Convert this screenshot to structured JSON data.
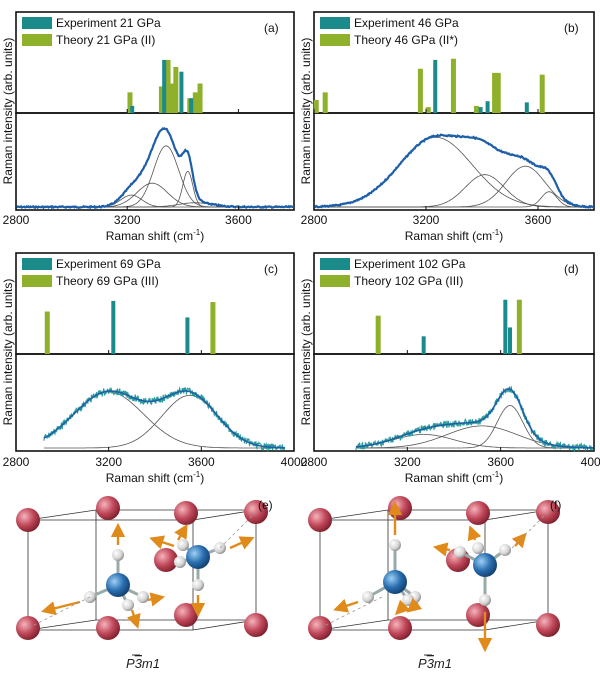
{
  "figure": {
    "axis_label_y": "Raman intensity (arb. units)",
    "axis_label_x_base": "Raman shift (cm",
    "axis_label_x_sup": "-1",
    "axis_label_x_end": ")"
  },
  "colors": {
    "experiment": "#1b8a8a",
    "theory": "#8fb02a",
    "fit_curve": "#1f5fa8",
    "component": "#555555",
    "noisy_data": "#2a9c98",
    "atom_corner": "#c0485a",
    "atom_n": "#2a6fb0",
    "atom_h": "#dcdcdc",
    "arrow": "#e08a1a"
  },
  "chart_data": [
    {
      "panel": "(a)",
      "type": "bar",
      "legend": [
        "Experiment 21 GPa",
        "Theory 21 GPa (II)"
      ],
      "xlabel": "Raman shift (cm-1)",
      "ylabel": "Raman intensity (arb. units)",
      "xlim": [
        2800,
        3800
      ],
      "xticks": [
        2800,
        3200,
        3600
      ],
      "experiment_peaks": [
        3218,
        3333,
        3395,
        3430
      ],
      "experiment_heights": [
        0.12,
        0.9,
        0.7,
        0.25
      ],
      "theory_peaks": [
        3210,
        3323,
        3347,
        3363,
        3375,
        3425,
        3445,
        3462
      ],
      "theory_heights": [
        0.35,
        0.45,
        0.9,
        0.5,
        0.78,
        0.25,
        0.35,
        0.5
      ],
      "spectrum_components": [
        {
          "center": 3215,
          "width": 38,
          "height": 0.14
        },
        {
          "center": 3290,
          "width": 55,
          "height": 0.28
        },
        {
          "center": 3340,
          "width": 45,
          "height": 0.72
        },
        {
          "center": 3418,
          "width": 18,
          "height": 0.42
        },
        {
          "center": 3445,
          "width": 60,
          "height": 0.05
        }
      ]
    },
    {
      "panel": "(b)",
      "type": "bar",
      "legend": [
        "Experiment 46 GPa",
        "Theory 46 GPa (II*)"
      ],
      "xlabel": "Raman shift (cm-1)",
      "ylabel": "Raman intensity (arb. units)",
      "xlim": [
        2800,
        3800
      ],
      "xticks": [
        2800,
        3200,
        3600
      ],
      "experiment_peaks": [
        3233,
        3395,
        3420,
        3560
      ],
      "experiment_heights": [
        0.9,
        0.1,
        0.2,
        0.18
      ],
      "theory_peaks": [
        2808,
        2840,
        3180,
        3208,
        3298,
        3380,
        3445,
        3458,
        3615
      ],
      "theory_heights": [
        0.22,
        0.35,
        0.75,
        0.1,
        0.92,
        0.12,
        0.68,
        0.68,
        0.65
      ],
      "spectrum_components": [
        {
          "center": 3235,
          "width": 130,
          "height": 0.82
        },
        {
          "center": 3410,
          "width": 70,
          "height": 0.38
        },
        {
          "center": 3555,
          "width": 70,
          "height": 0.48
        },
        {
          "center": 3640,
          "width": 28,
          "height": 0.18
        }
      ]
    },
    {
      "panel": "(c)",
      "type": "bar",
      "legend": [
        "Experiment 69 GPa",
        "Theory 69 GPa (III)"
      ],
      "xlabel": "Raman shift (cm-1)",
      "ylabel": "Raman intensity (arb. units)",
      "xlim": [
        2800,
        4000
      ],
      "xticks": [
        2800,
        3200,
        3600,
        4000
      ],
      "experiment_peaks": [
        3220,
        3540
      ],
      "experiment_heights": [
        0.9,
        0.62
      ],
      "theory_peaks": [
        2935,
        3650
      ],
      "theory_heights": [
        0.72,
        0.88
      ],
      "noisy": true,
      "spectrum_components": [
        {
          "center": 3200,
          "width": 150,
          "height": 0.66
        },
        {
          "center": 3550,
          "width": 120,
          "height": 0.62
        }
      ]
    },
    {
      "panel": "(d)",
      "type": "bar",
      "legend": [
        "Experiment 102 GPa",
        "Theory 102 GPa (III)"
      ],
      "xlabel": "Raman shift (cm-1)",
      "ylabel": "Raman intensity (arb. units)",
      "xlim": [
        2800,
        4000
      ],
      "xticks": [
        2800,
        3200,
        3600,
        4000
      ],
      "experiment_peaks": [
        3270,
        3620,
        3640
      ],
      "experiment_heights": [
        0.3,
        0.92,
        0.45
      ],
      "theory_peaks": [
        3075,
        3680
      ],
      "theory_heights": [
        0.65,
        0.92
      ],
      "noisy": true,
      "spectrum_components": [
        {
          "center": 3270,
          "width": 130,
          "height": 0.16
        },
        {
          "center": 3520,
          "width": 150,
          "height": 0.26
        },
        {
          "center": 3640,
          "width": 55,
          "height": 0.5
        }
      ]
    }
  ],
  "structures": [
    {
      "panel": "(e)",
      "space_group": "P",
      "space_group_bar": "3",
      "space_group_end": "m1"
    },
    {
      "panel": "(f)",
      "space_group": "P",
      "space_group_bar": "3",
      "space_group_end": "m1"
    }
  ]
}
